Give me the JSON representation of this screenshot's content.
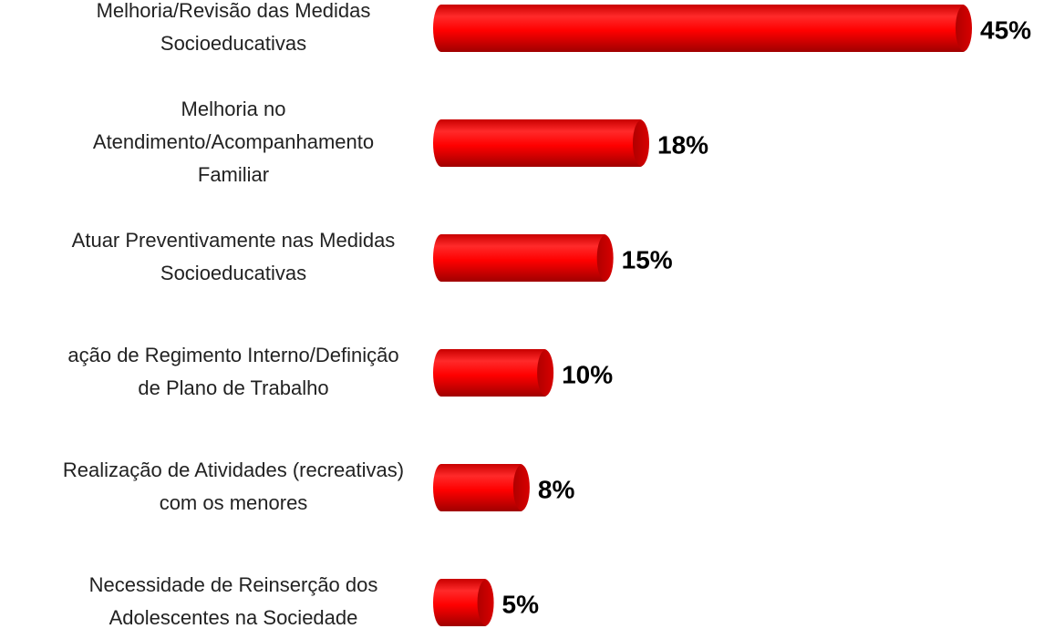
{
  "chart_data": {
    "type": "bar",
    "orientation": "horizontal",
    "color": "#ff0000",
    "categories": [
      [
        "Melhoria/Revisão das Medidas",
        "Socioeducativas"
      ],
      [
        "Melhoria no",
        "Atendimento/Acompanhamento",
        "Familiar"
      ],
      [
        "Atuar Preventivamente nas Medidas",
        "Socioeducativas"
      ],
      [
        "ação de Regimento Interno/Definição",
        "de Plano de Trabalho"
      ],
      [
        "Realização de Atividades (recreativas)",
        "com os menores"
      ],
      [
        "Necessidade de Reinserção dos",
        "Adolescentes na Sociedade"
      ]
    ],
    "values": [
      45,
      18,
      15,
      10,
      8,
      5
    ],
    "value_labels": [
      "45%",
      "18%",
      "15%",
      "10%",
      "8%",
      "5%"
    ]
  }
}
